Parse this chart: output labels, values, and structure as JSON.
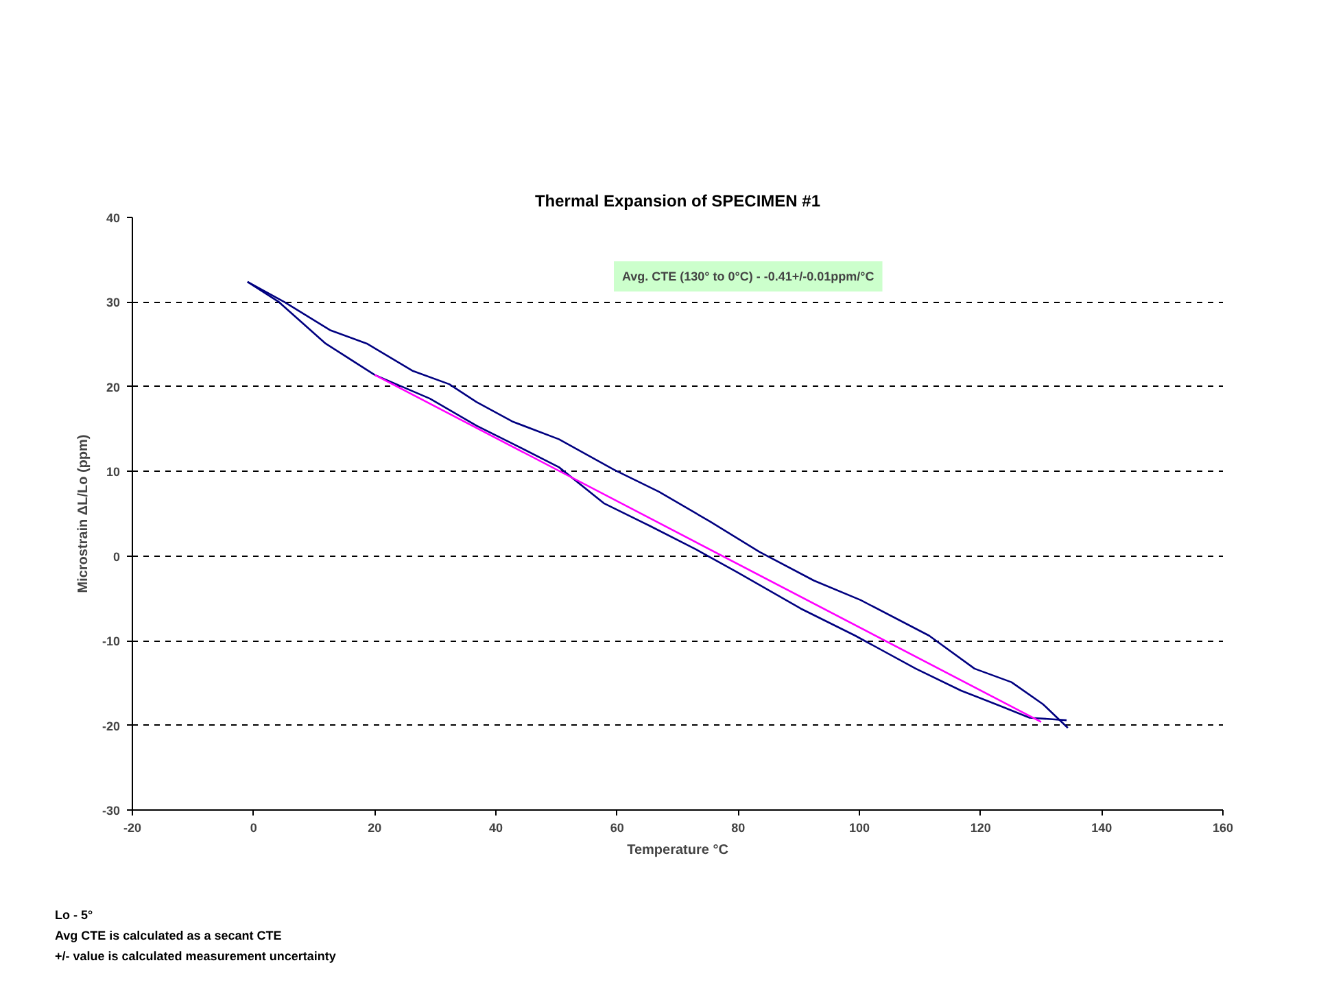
{
  "chart_data": {
    "type": "line",
    "title": "Thermal Expansion of SPECIMEN #1",
    "xlabel": "Temperature °C",
    "ylabel": "Microstrain ΔL/Lo (ppm)",
    "annotations": [
      "Avg. CTE (130° to 0°C) - -0.41+/-0.01ppm/°C",
      "Lo - 5°",
      "Avg CTE is calculated as a secant CTE",
      "+/- value is calculated measurement uncertainty"
    ],
    "xlim": [
      -20,
      160
    ],
    "xticks": [
      -20,
      0,
      20,
      40,
      60,
      80,
      100,
      120,
      140,
      160
    ],
    "ylim": [
      -30,
      40
    ],
    "yticks": [
      -30,
      -20,
      -10,
      0,
      10,
      20,
      30,
      40
    ],
    "grid": "y",
    "marker": "none",
    "series": [
      {
        "color": "#000080",
        "x": [
          -1.0,
          5.1,
          12.6,
          18.7,
          26.2,
          32.3,
          36.8,
          42.7,
          50.4,
          59.5,
          66.9,
          75.3,
          83.5,
          92.5,
          100.2,
          111.5,
          119.0,
          125.1,
          130.3,
          134.4
        ],
        "values": [
          32.4,
          30.0,
          26.7,
          25.1,
          21.9,
          20.3,
          18.2,
          15.9,
          13.8,
          10.2,
          7.6,
          4.1,
          0.5,
          -2.9,
          -5.2,
          -9.4,
          -13.3,
          -14.9,
          -17.5,
          -20.3
        ]
      },
      {
        "color": "#000080",
        "x": [
          -1.0,
          4.2,
          11.9,
          20.0,
          29.1,
          36.8,
          42.7,
          50.4,
          57.9,
          65.3,
          73.0,
          79.8,
          90.3,
          99.3,
          109.3,
          116.8,
          123.6,
          128.1,
          134.2
        ],
        "values": [
          32.4,
          30.0,
          25.1,
          21.4,
          18.6,
          15.4,
          13.3,
          10.5,
          6.2,
          3.6,
          0.8,
          -1.9,
          -6.2,
          -9.4,
          -13.3,
          -15.9,
          -17.8,
          -19.1,
          -19.4
        ]
      },
      {
        "color": "#ff00ff",
        "x": [
          20.0,
          130.0
        ],
        "values": [
          21.4,
          -19.6
        ]
      }
    ]
  }
}
